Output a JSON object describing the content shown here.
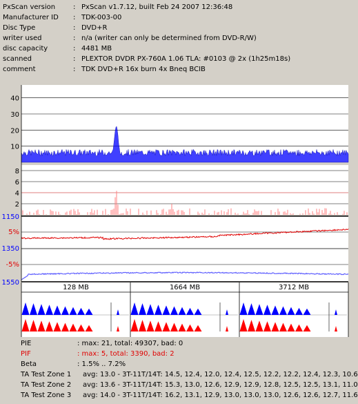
{
  "header": {
    "rows": [
      {
        "label": "PxScan version",
        "value": "PxScan v1.7.12, built Feb 24 2007 12:36:48"
      },
      {
        "label": "Manufacturer ID",
        "value": "TDK-003-00"
      },
      {
        "label": "Disc Type",
        "value": "DVD+R"
      },
      {
        "label": "writer used",
        "value": "n/a (writer can only be determined from DVD-R/W)"
      },
      {
        "label": "disc capacity",
        "value": "4481 MB"
      },
      {
        "label": "scanned",
        "value": "PLEXTOR DVDR PX-760A 1.06 TLA: #0103 @ 2x (1h25m18s)"
      },
      {
        "label": "comment",
        "value": "TDK DVD+R 16x burn 4x Bneq BCIB"
      }
    ],
    "colon": ":"
  },
  "chart_data": [
    {
      "type": "area",
      "name_hint": "PIE",
      "ytick_labels": [
        "40",
        "30",
        "20",
        "10"
      ],
      "ylim": [
        0,
        48
      ],
      "max": 21,
      "baseline": 4,
      "spikes": [
        {
          "x_frac": 0.29,
          "value": 21
        },
        {
          "x_frac": 0.75,
          "value": 6
        }
      ],
      "color": "#0000ff"
    },
    {
      "type": "bar",
      "name_hint": "PIF",
      "ytick_labels": [
        "8",
        "6",
        "4",
        "2"
      ],
      "ylim": [
        0,
        9
      ],
      "max": 5,
      "spikes": [
        {
          "x_frac": 0.29,
          "value": 5
        },
        {
          "x_frac": 0.46,
          "value": 2
        }
      ],
      "color": "#ff8080"
    },
    {
      "type": "line",
      "name_hint": "Beta / Jitter",
      "ytick_labels_blue": [
        "1150",
        "1350",
        "1550"
      ],
      "ytick_labels_red": [
        "5%",
        "-5%"
      ],
      "beta_range": [
        "1.5%",
        "7.2%"
      ],
      "beta_color": "#e00000",
      "jitter_color": "#6060ff"
    },
    {
      "type": "bar",
      "name_hint": "TA Test Zones",
      "zones": [
        "128 MB",
        "1664 MB",
        "3712 MB"
      ],
      "top_color": "#0000ff",
      "bottom_color": "#ff0000"
    }
  ],
  "footer": {
    "rows": [
      {
        "label": "PIE",
        "value": ": max: 21, total: 49307, bad: 0",
        "red": false
      },
      {
        "label": "PIF",
        "value": ": max: 5, total: 3390, bad: 2",
        "red": true
      },
      {
        "label": "Beta",
        "value": ": 1.5% .. 7.2%",
        "red": false
      },
      {
        "label": "TA Test Zone 1",
        "value": "avg: 13.0 - 3T-11T/14T: 14.5, 12.4, 12.0, 12.4, 12.5, 12.2, 12.2, 12.4, 12.3, 10.6",
        "red": false
      },
      {
        "label": "TA Test Zone 2",
        "value": "avg: 13.6 - 3T-11T/14T: 15.3, 13.0, 12.6, 12.9, 12.9, 12.8, 12.5, 12.5, 13.1, 11.0",
        "red": false
      },
      {
        "label": "TA Test Zone 3",
        "value": "avg: 14.0 - 3T-11T/14T: 16.2, 13.1, 12.9, 13.0, 13.0, 13.0, 12.6, 12.6, 12.7, 11.6",
        "red": false
      }
    ]
  }
}
